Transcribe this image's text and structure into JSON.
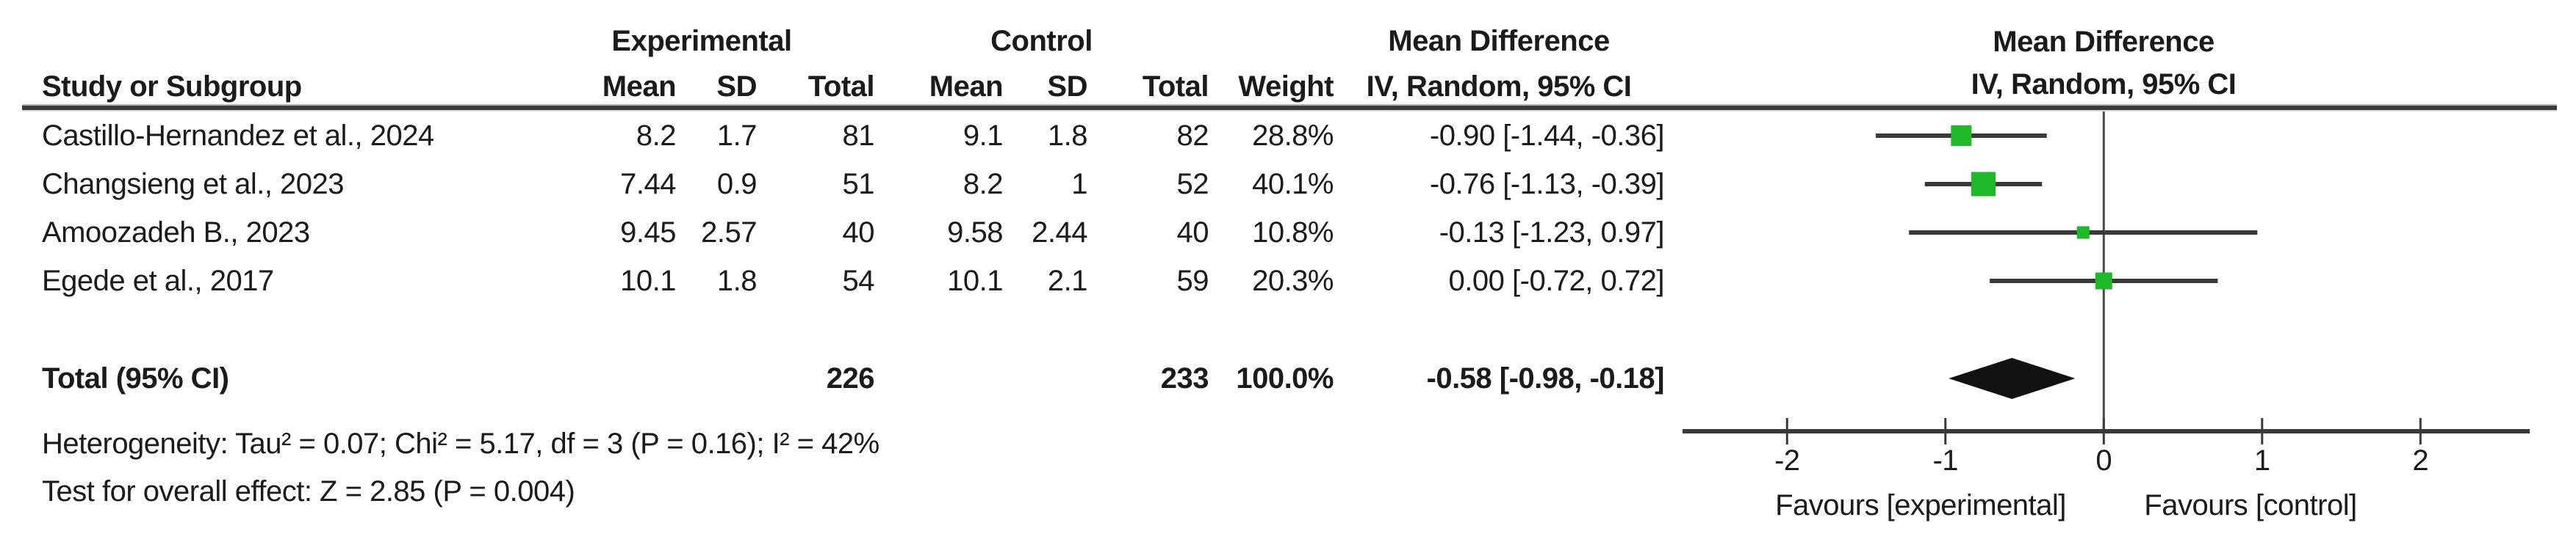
{
  "table": {
    "headers": {
      "study": "Study or Subgroup",
      "experimental_group": "Experimental",
      "control_group": "Control",
      "mean": "Mean",
      "sd": "SD",
      "total": "Total",
      "weight": "Weight",
      "md_title": "Mean Difference",
      "md_subtitle": "IV, Random, 95% CI"
    }
  },
  "chart_data": {
    "type": "forest",
    "effect_measure": "Mean Difference",
    "method": "IV, Random, 95% CI",
    "plot_title": "Mean Difference",
    "plot_subtitle": "IV, Random, 95% CI",
    "xlim": [
      -2.66,
      2.69
    ],
    "ticks": [
      -2,
      -1,
      0,
      1,
      2
    ],
    "tick_labels": [
      "-2",
      "-1",
      "0",
      "1",
      "2"
    ],
    "favours_left": "Favours [experimental]",
    "favours_right": "Favours [control]",
    "marker_color": "#1eb828",
    "line_color": "#3a3a3a",
    "diamond_color": "#121212",
    "rows": [
      {
        "study": "Castillo-Hernandez et al., 2024",
        "exp_mean": "8.2",
        "exp_sd": "1.7",
        "exp_total": "81",
        "ctrl_mean": "9.1",
        "ctrl_sd": "1.8",
        "ctrl_total": "82",
        "weight": "28.8%",
        "ci_label": "-0.90 [-1.44, -0.36]",
        "md": -0.9,
        "ci_low": -1.44,
        "ci_high": -0.36,
        "weight_value": 28.8
      },
      {
        "study": "Changsieng et al., 2023",
        "exp_mean": "7.44",
        "exp_sd": "0.9",
        "exp_total": "51",
        "ctrl_mean": "8.2",
        "ctrl_sd": "1",
        "ctrl_total": "52",
        "weight": "40.1%",
        "ci_label": "-0.76 [-1.13, -0.39]",
        "md": -0.76,
        "ci_low": -1.13,
        "ci_high": -0.39,
        "weight_value": 40.1
      },
      {
        "study": "Amoozadeh B., 2023",
        "exp_mean": "9.45",
        "exp_sd": "2.57",
        "exp_total": "40",
        "ctrl_mean": "9.58",
        "ctrl_sd": "2.44",
        "ctrl_total": "40",
        "weight": "10.8%",
        "ci_label": "-0.13 [-1.23, 0.97]",
        "md": -0.13,
        "ci_low": -1.23,
        "ci_high": 0.97,
        "weight_value": 10.8
      },
      {
        "study": "Egede et al., 2017",
        "exp_mean": "10.1",
        "exp_sd": "1.8",
        "exp_total": "54",
        "ctrl_mean": "10.1",
        "ctrl_sd": "2.1",
        "ctrl_total": "59",
        "weight": "20.3%",
        "ci_label": "0.00 [-0.72, 0.72]",
        "md": 0.0,
        "ci_low": -0.72,
        "ci_high": 0.72,
        "weight_value": 20.3
      }
    ],
    "total": {
      "label": "Total (95% CI)",
      "exp_total": "226",
      "ctrl_total": "233",
      "weight": "100.0%",
      "ci_label": "-0.58 [-0.98, -0.18]",
      "md": -0.58,
      "ci_low": -0.98,
      "ci_high": -0.18
    }
  },
  "footer": {
    "heterogeneity": "Heterogeneity: Tau² = 0.07; Chi² = 5.17, df = 3 (P = 0.16); I² = 42%",
    "overall_effect": "Test for overall effect: Z = 2.85 (P = 0.004)"
  }
}
